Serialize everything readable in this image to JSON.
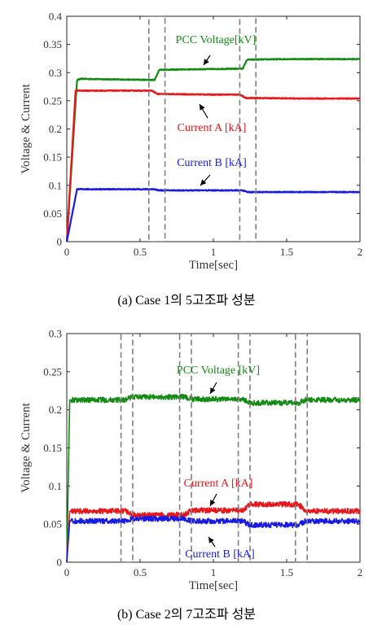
{
  "colors": {
    "pcc": "#138a13",
    "current_a": "#e8161b",
    "current_b": "#1919e6",
    "box": "#7f7f7f",
    "axis": "#262626"
  },
  "chart_data": [
    {
      "type": "line",
      "caption": "(a)  Case  1의  5고조파  성분",
      "xlabel": "Time[sec]",
      "ylabel": "Voltage & Current",
      "xlim": [
        0,
        2
      ],
      "ylim": [
        0,
        0.4
      ],
      "xticks": [
        "0",
        "0.5",
        "1",
        "1.5",
        "2"
      ],
      "yticks": [
        "0",
        "0.05",
        "0.1",
        "0.15",
        "0.2",
        "0.25",
        "0.3",
        "0.35",
        "0.4"
      ],
      "grid": false,
      "noise": 0.0008,
      "series": [
        {
          "name": "PCC Voltage[kV]",
          "color_key": "pcc",
          "x": [
            0,
            0.07,
            0.1,
            0.3,
            0.6,
            0.63,
            0.9,
            1.2,
            1.23,
            1.5,
            2.0
          ],
          "y": [
            0,
            0.287,
            0.289,
            0.288,
            0.287,
            0.305,
            0.306,
            0.307,
            0.323,
            0.324,
            0.324
          ]
        },
        {
          "name": "Current A [kA]",
          "color_key": "current_a",
          "x": [
            0,
            0.06,
            0.1,
            0.58,
            0.62,
            1.0,
            1.18,
            1.22,
            1.6,
            2.0
          ],
          "y": [
            0,
            0.268,
            0.268,
            0.268,
            0.262,
            0.261,
            0.261,
            0.255,
            0.254,
            0.254
          ]
        },
        {
          "name": "Current B [kA]",
          "color_key": "current_b",
          "x": [
            0,
            0.07,
            0.3,
            0.6,
            0.63,
            1.2,
            1.23,
            2.0
          ],
          "y": [
            0,
            0.093,
            0.093,
            0.093,
            0.091,
            0.091,
            0.088,
            0.088
          ]
        }
      ],
      "boxes": [
        {
          "x0": 0.56,
          "x1": 0.67,
          "y0": 0,
          "y1": 0.4
        },
        {
          "x0": 1.18,
          "x1": 1.29,
          "y0": 0,
          "y1": 0.4
        }
      ],
      "annotations": [
        {
          "text": "PCC Voltage[kV]",
          "series": 0
        },
        {
          "text": "Current A [kA]",
          "series": 1
        },
        {
          "text": "Current B [kA]",
          "series": 2
        }
      ]
    },
    {
      "type": "line",
      "caption": "(b)  Case  2의  7고조파  성분",
      "xlabel": "Time[sec]",
      "ylabel": "Voltage & Current",
      "xlim": [
        0,
        2
      ],
      "ylim": [
        0,
        0.3
      ],
      "xticks": [
        "0",
        "0.5",
        "1",
        "1.5",
        "2"
      ],
      "yticks": [
        "0",
        "0.05",
        "0.1",
        "0.15",
        "0.2",
        "0.25",
        "0.3"
      ],
      "grid": false,
      "noise": 0.0035,
      "series": [
        {
          "name": "PCC Voltage [kV]",
          "color_key": "pcc",
          "x": [
            0,
            0.02,
            0.4,
            0.45,
            0.8,
            0.85,
            1.2,
            1.25,
            1.58,
            1.63,
            2.0
          ],
          "y": [
            0,
            0.213,
            0.213,
            0.217,
            0.217,
            0.214,
            0.214,
            0.209,
            0.209,
            0.213,
            0.213
          ]
        },
        {
          "name": "Current A [kA]",
          "color_key": "current_a",
          "x": [
            0,
            0.02,
            0.4,
            0.45,
            0.8,
            0.85,
            1.2,
            1.25,
            1.58,
            1.63,
            2.0
          ],
          "y": [
            0,
            0.067,
            0.067,
            0.062,
            0.062,
            0.068,
            0.068,
            0.076,
            0.076,
            0.067,
            0.067
          ]
        },
        {
          "name": "Current B [kA]",
          "color_key": "current_b",
          "x": [
            0,
            0.02,
            0.4,
            0.45,
            0.8,
            0.85,
            1.2,
            1.25,
            1.58,
            1.63,
            2.0
          ],
          "y": [
            0,
            0.054,
            0.054,
            0.057,
            0.057,
            0.054,
            0.054,
            0.049,
            0.049,
            0.054,
            0.054
          ]
        }
      ],
      "boxes": [
        {
          "x0": 0.37,
          "x1": 0.45,
          "y0": 0,
          "y1": 0.3
        },
        {
          "x0": 0.77,
          "x1": 0.85,
          "y0": 0,
          "y1": 0.3
        },
        {
          "x0": 1.17,
          "x1": 1.25,
          "y0": 0,
          "y1": 0.3
        },
        {
          "x0": 1.56,
          "x1": 1.64,
          "y0": 0,
          "y1": 0.3
        }
      ],
      "annotations": [
        {
          "text": "PCC Voltage [kV]",
          "series": 0
        },
        {
          "text": "Current A [kA]",
          "series": 1
        },
        {
          "text": "Current B [kA]",
          "series": 2
        }
      ]
    }
  ]
}
